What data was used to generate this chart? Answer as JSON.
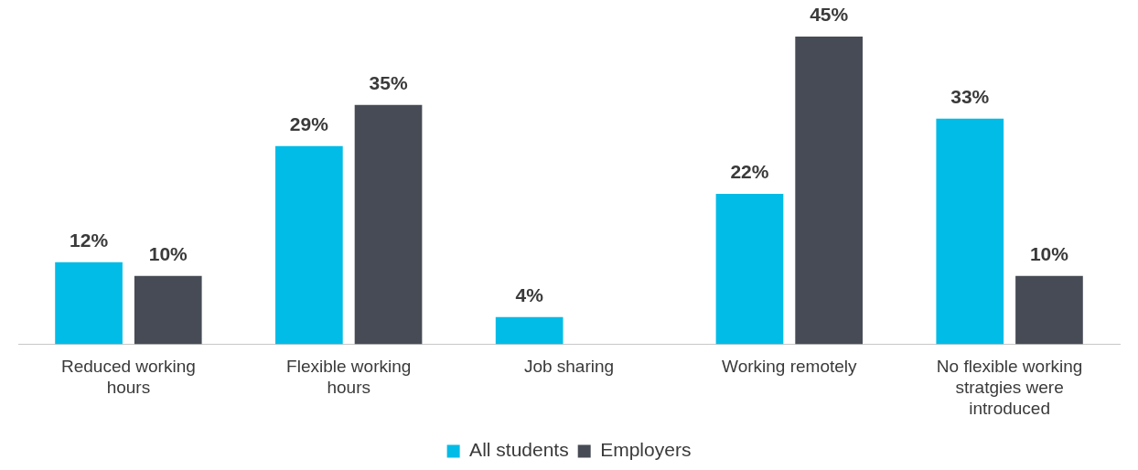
{
  "chart_data": {
    "type": "bar",
    "categories": [
      "Reduced working hours",
      "Flexible working hours",
      "Job sharing",
      "Working remotely",
      "No flexible working stratgies were introduced"
    ],
    "series": [
      {
        "name": "All students",
        "color": "#00bce6",
        "values": [
          12,
          29,
          4,
          22,
          33
        ],
        "value_labels": [
          "12%",
          "29%",
          "4%",
          "22%",
          "33%"
        ]
      },
      {
        "name": "Employers",
        "color": "#474b55",
        "values": [
          10,
          35,
          null,
          45,
          10
        ],
        "value_labels": [
          "10%",
          "35%",
          null,
          "45%",
          "10%"
        ]
      }
    ],
    "legend": "bottom",
    "grid": false,
    "tick_labels": "x"
  }
}
